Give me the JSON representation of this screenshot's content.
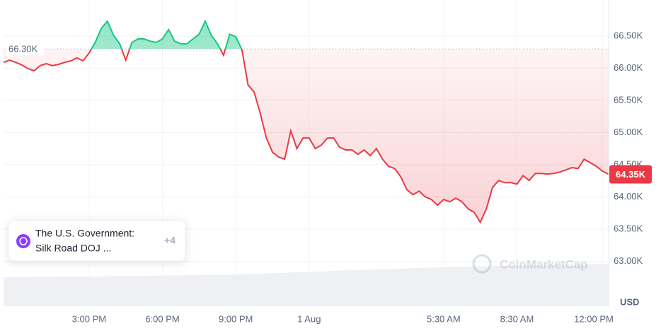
{
  "chart_data": {
    "type": "line",
    "values": [
      66090,
      66125,
      66090,
      66050,
      65995,
      65960,
      66040,
      66070,
      66040,
      66060,
      66090,
      66115,
      66160,
      66115,
      66235,
      66400,
      66620,
      66730,
      66510,
      66380,
      66125,
      66400,
      66455,
      66455,
      66420,
      66400,
      66455,
      66600,
      66420,
      66380,
      66380,
      66455,
      66530,
      66730,
      66510,
      66380,
      66200,
      66530,
      66490,
      66290,
      65740,
      65630,
      65300,
      64915,
      64695,
      64620,
      64585,
      65025,
      64750,
      64915,
      64915,
      64750,
      64805,
      64915,
      64915,
      64770,
      64730,
      64730,
      64660,
      64730,
      64640,
      64750,
      64585,
      64475,
      64440,
      64310,
      64110,
      64035,
      64090,
      64000,
      63960,
      63870,
      63960,
      63925,
      63980,
      63925,
      63815,
      63760,
      63605,
      63815,
      64145,
      64255,
      64220,
      64220,
      64200,
      64330,
      64255,
      64365,
      64365,
      64355,
      64365,
      64385,
      64420,
      64455,
      64440,
      64585,
      64530,
      64475,
      64400,
      64350
    ],
    "above_color": "#16c784",
    "below_color": "#ea3943",
    "baseline": {
      "value": 66300,
      "label": "66.30K"
    },
    "current_price": {
      "value": 64350,
      "label": "64.35K"
    },
    "xlim": [
      0,
      99
    ],
    "xticks": [
      {
        "value": 14,
        "label": "3:00 PM"
      },
      {
        "value": 26,
        "label": "6:00 PM"
      },
      {
        "value": 38,
        "label": "9:00 PM"
      },
      {
        "value": 50,
        "label": "1 Aug"
      },
      {
        "value": 72,
        "label": "5:30 AM"
      },
      {
        "value": 84,
        "label": "8:30 AM"
      },
      {
        "value": 98,
        "label": "12:00 PM"
      }
    ],
    "ylim": [
      62300,
      67060
    ],
    "yticks": [
      {
        "value": 63000,
        "label": "63.00K"
      },
      {
        "value": 63500,
        "label": "63.50K"
      },
      {
        "value": 64000,
        "label": "64.00K"
      },
      {
        "value": 64500,
        "label": "64.50K"
      },
      {
        "value": 65000,
        "label": "65.00K"
      },
      {
        "value": 65500,
        "label": "65.50K"
      },
      {
        "value": 66000,
        "label": "66.00K"
      },
      {
        "value": 66500,
        "label": "66.50K"
      }
    ],
    "grid": true,
    "unit_label": "USD",
    "watermark": "CoinMarketCap",
    "event": {
      "title_line1": "The U.S. Government:",
      "title_line2": "Silk Road DOJ ...",
      "more": "+4"
    }
  }
}
